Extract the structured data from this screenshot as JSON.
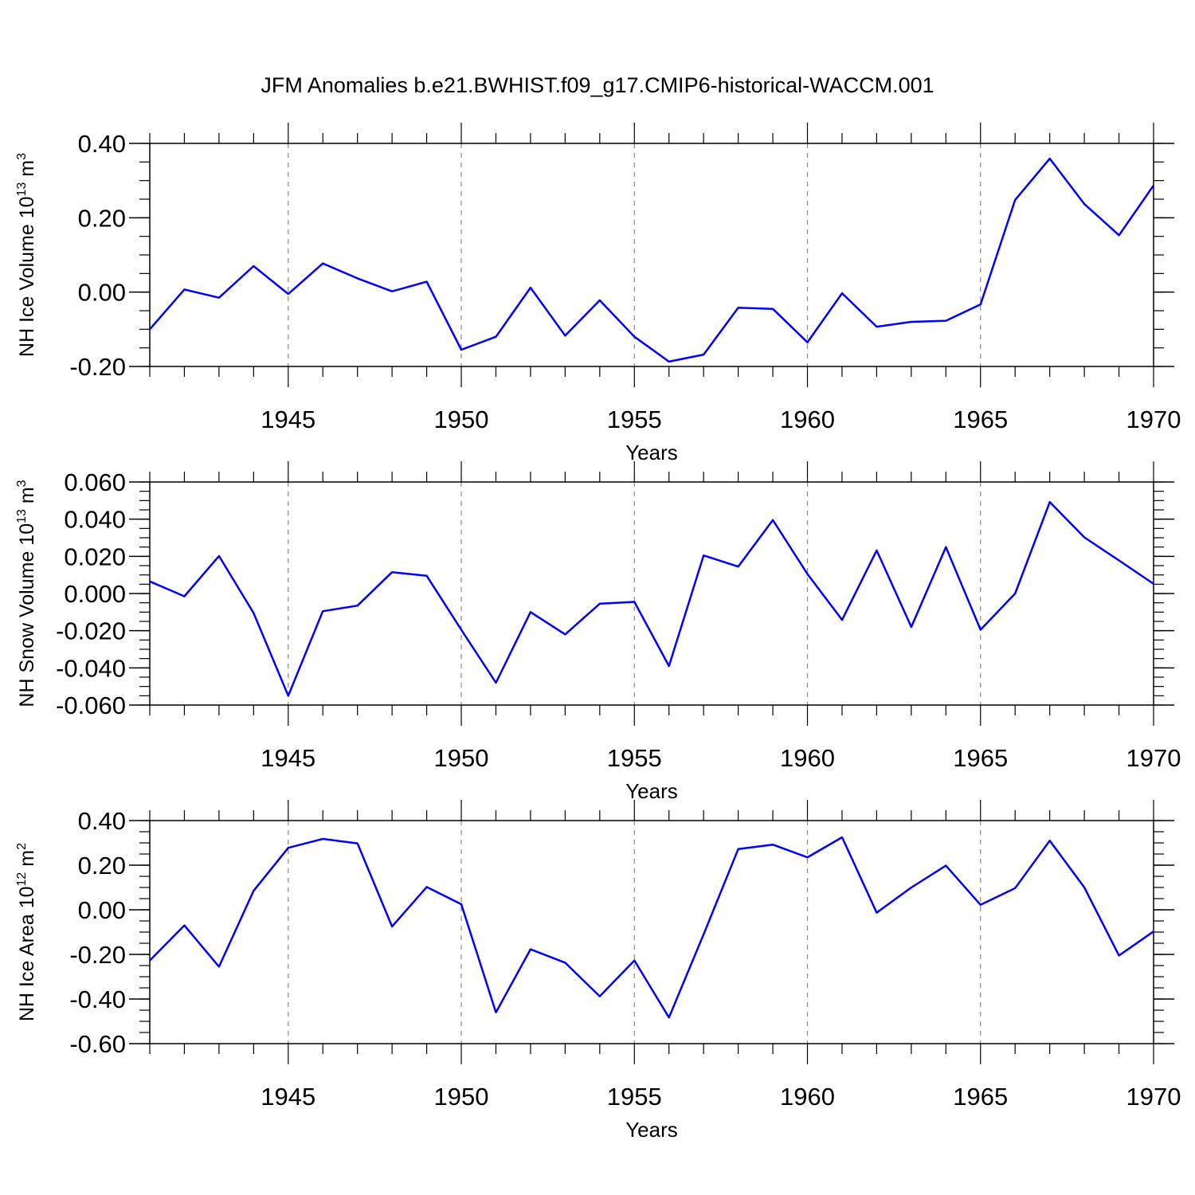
{
  "title": "JFM Anomalies b.e21.BWHIST.f09_g17.CMIP6-historical-WACCM.001",
  "colors": {
    "line": "#0000ff",
    "axis": "#000000",
    "gridline": "#888888"
  },
  "chart_data": [
    {
      "type": "line",
      "id": "ice-volume",
      "ylabel": "NH Ice Volume 10",
      "ylabel_exp1": "13",
      "ylabel_mid": " m",
      "ylabel_exp2": "3",
      "xlabel": "Years",
      "xlim": [
        1941,
        1970
      ],
      "ylim": [
        -0.2,
        0.4
      ],
      "yticks": [
        -0.2,
        0.0,
        0.2,
        0.4
      ],
      "ytick_labels": [
        "-0.20",
        "0.00",
        "0.20",
        "0.40"
      ],
      "yminor_step": 0.05,
      "xticks": [
        1945,
        1950,
        1955,
        1960,
        1965,
        1970
      ],
      "xtick_labels": [
        "1945",
        "1950",
        "1955",
        "1960",
        "1965",
        "1970"
      ],
      "grid": "x-major-dashed",
      "x": [
        1941,
        1942,
        1943,
        1944,
        1945,
        1946,
        1947,
        1948,
        1949,
        1950,
        1951,
        1952,
        1953,
        1954,
        1955,
        1956,
        1957,
        1958,
        1959,
        1960,
        1961,
        1962,
        1963,
        1964,
        1965,
        1966,
        1967,
        1968,
        1969,
        1970
      ],
      "series": [
        {
          "values": [
            -0.1,
            0.007,
            -0.015,
            0.07,
            -0.005,
            0.077,
            0.037,
            0.002,
            0.028,
            -0.155,
            -0.12,
            0.012,
            -0.117,
            -0.022,
            -0.12,
            -0.187,
            -0.168,
            -0.042,
            -0.045,
            -0.135,
            -0.003,
            -0.093,
            -0.08,
            -0.077,
            -0.033,
            0.248,
            0.359,
            0.237,
            0.153,
            0.287
          ]
        }
      ]
    },
    {
      "type": "line",
      "id": "snow-volume",
      "ylabel": "NH Snow Volume 10",
      "ylabel_exp1": "13",
      "ylabel_mid": " m",
      "ylabel_exp2": "3",
      "xlabel": "Years",
      "xlim": [
        1941,
        1970
      ],
      "ylim": [
        -0.06,
        0.06
      ],
      "yticks": [
        -0.06,
        -0.04,
        -0.02,
        0.0,
        0.02,
        0.04,
        0.06
      ],
      "ytick_labels": [
        "-0.060",
        "-0.040",
        "-0.020",
        "0.000",
        "0.020",
        "0.040",
        "0.060"
      ],
      "yminor_step": 0.005,
      "xticks": [
        1945,
        1950,
        1955,
        1960,
        1965,
        1970
      ],
      "xtick_labels": [
        "1945",
        "1950",
        "1955",
        "1960",
        "1965",
        "1970"
      ],
      "grid": "x-major-dashed",
      "x": [
        1941,
        1942,
        1943,
        1944,
        1945,
        1946,
        1947,
        1948,
        1949,
        1950,
        1951,
        1952,
        1953,
        1954,
        1955,
        1956,
        1957,
        1958,
        1959,
        1960,
        1961,
        1962,
        1963,
        1964,
        1965,
        1966,
        1967,
        1968,
        1969,
        1970
      ],
      "series": [
        {
          "values": [
            0.0065,
            -0.0015,
            0.0202,
            -0.0105,
            -0.055,
            -0.0095,
            -0.0065,
            0.0115,
            0.0095,
            -0.0195,
            -0.048,
            -0.01,
            -0.022,
            -0.0055,
            -0.0045,
            -0.039,
            0.0205,
            0.0145,
            0.0395,
            0.0105,
            -0.0142,
            0.0232,
            -0.018,
            0.025,
            -0.0195,
            0.0,
            0.0492,
            0.0302,
            0.0178,
            0.0052
          ]
        }
      ]
    },
    {
      "type": "line",
      "id": "ice-area",
      "ylabel": "NH Ice Area 10",
      "ylabel_exp1": "12",
      "ylabel_mid": " m",
      "ylabel_exp2": "2",
      "xlabel": "Years",
      "xlim": [
        1941,
        1970
      ],
      "ylim": [
        -0.6,
        0.4
      ],
      "yticks": [
        -0.6,
        -0.4,
        -0.2,
        0.0,
        0.2,
        0.4
      ],
      "ytick_labels": [
        "-0.60",
        "-0.40",
        "-0.20",
        "0.00",
        "0.20",
        "0.40"
      ],
      "yminor_step": 0.05,
      "xticks": [
        1945,
        1950,
        1955,
        1960,
        1965,
        1970
      ],
      "xtick_labels": [
        "1945",
        "1950",
        "1955",
        "1960",
        "1965",
        "1970"
      ],
      "grid": "x-major-dashed",
      "x": [
        1941,
        1942,
        1943,
        1944,
        1945,
        1946,
        1947,
        1948,
        1949,
        1950,
        1951,
        1952,
        1953,
        1954,
        1955,
        1956,
        1957,
        1958,
        1959,
        1960,
        1961,
        1962,
        1963,
        1964,
        1965,
        1966,
        1967,
        1968,
        1969,
        1970
      ],
      "series": [
        {
          "values": [
            -0.227,
            -0.07,
            -0.255,
            0.085,
            0.278,
            0.318,
            0.298,
            -0.075,
            0.102,
            0.025,
            -0.46,
            -0.177,
            -0.237,
            -0.388,
            -0.227,
            -0.483,
            -0.11,
            0.272,
            0.292,
            0.235,
            0.325,
            -0.013,
            0.1,
            0.198,
            0.022,
            0.097,
            0.31,
            0.1,
            -0.205,
            -0.097
          ]
        }
      ]
    }
  ]
}
